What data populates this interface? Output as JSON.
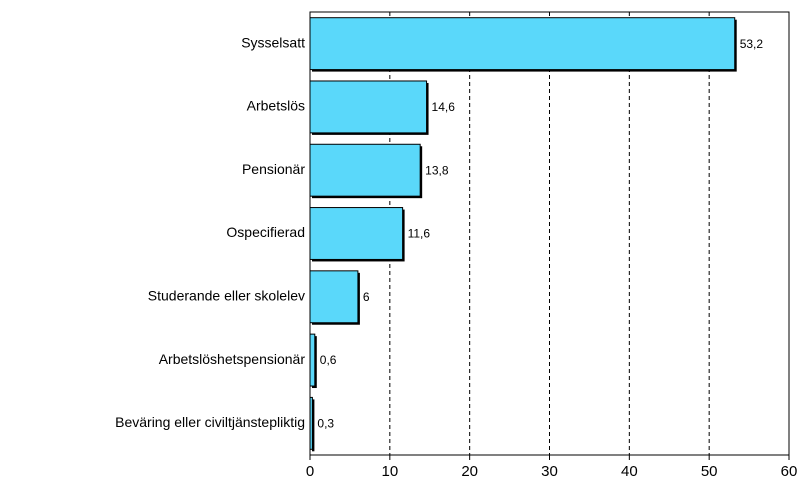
{
  "chart_data": {
    "type": "barh",
    "categories": [
      "Sysselsatt",
      "Arbetslös",
      "Pensionär",
      "Ospecifierad",
      "Studerande eller skolelev",
      "Arbetslöshetspensionär",
      "Beväring eller civiltjänstepliktig"
    ],
    "values": [
      53.2,
      14.6,
      13.8,
      11.6,
      6,
      0.6,
      0.3
    ],
    "value_labels": [
      "53,2",
      "14,6",
      "13,8",
      "11,6",
      "6",
      "0,6",
      "0,3"
    ],
    "color": "#5ad8fa",
    "xlim": [
      0,
      60
    ],
    "xticks": [
      0,
      10,
      20,
      30,
      40,
      50,
      60
    ],
    "grid": true
  }
}
